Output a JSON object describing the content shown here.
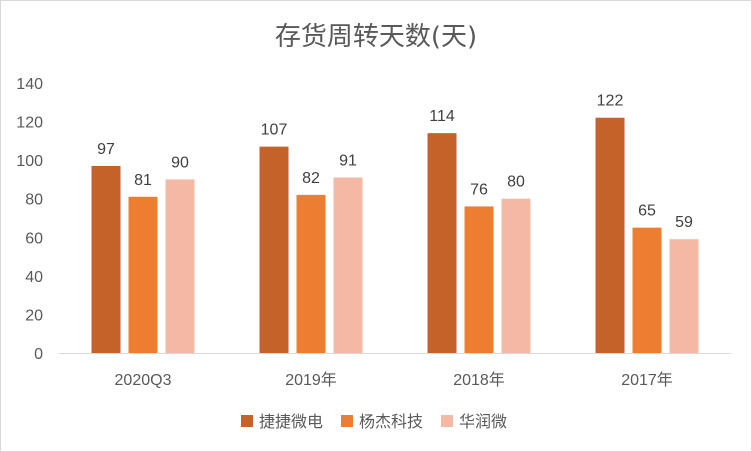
{
  "chart_data": {
    "type": "bar",
    "title": "存货周转天数(天)",
    "categories": [
      "2020Q3",
      "2019年",
      "2018年",
      "2017年"
    ],
    "series": [
      {
        "name": "捷捷微电",
        "color": "#C5622A",
        "values": [
          97,
          107,
          114,
          122
        ]
      },
      {
        "name": "杨杰科技",
        "color": "#ED7D31",
        "values": [
          81,
          82,
          76,
          65
        ]
      },
      {
        "name": "华润微",
        "color": "#F4B9A4",
        "values": [
          90,
          91,
          80,
          59
        ]
      }
    ],
    "yticks": [
      0,
      20,
      40,
      60,
      80,
      100,
      120,
      140
    ],
    "ylim": [
      0,
      140
    ],
    "xlabel": "",
    "ylabel": "",
    "grid": false,
    "legend_position": "bottom"
  }
}
